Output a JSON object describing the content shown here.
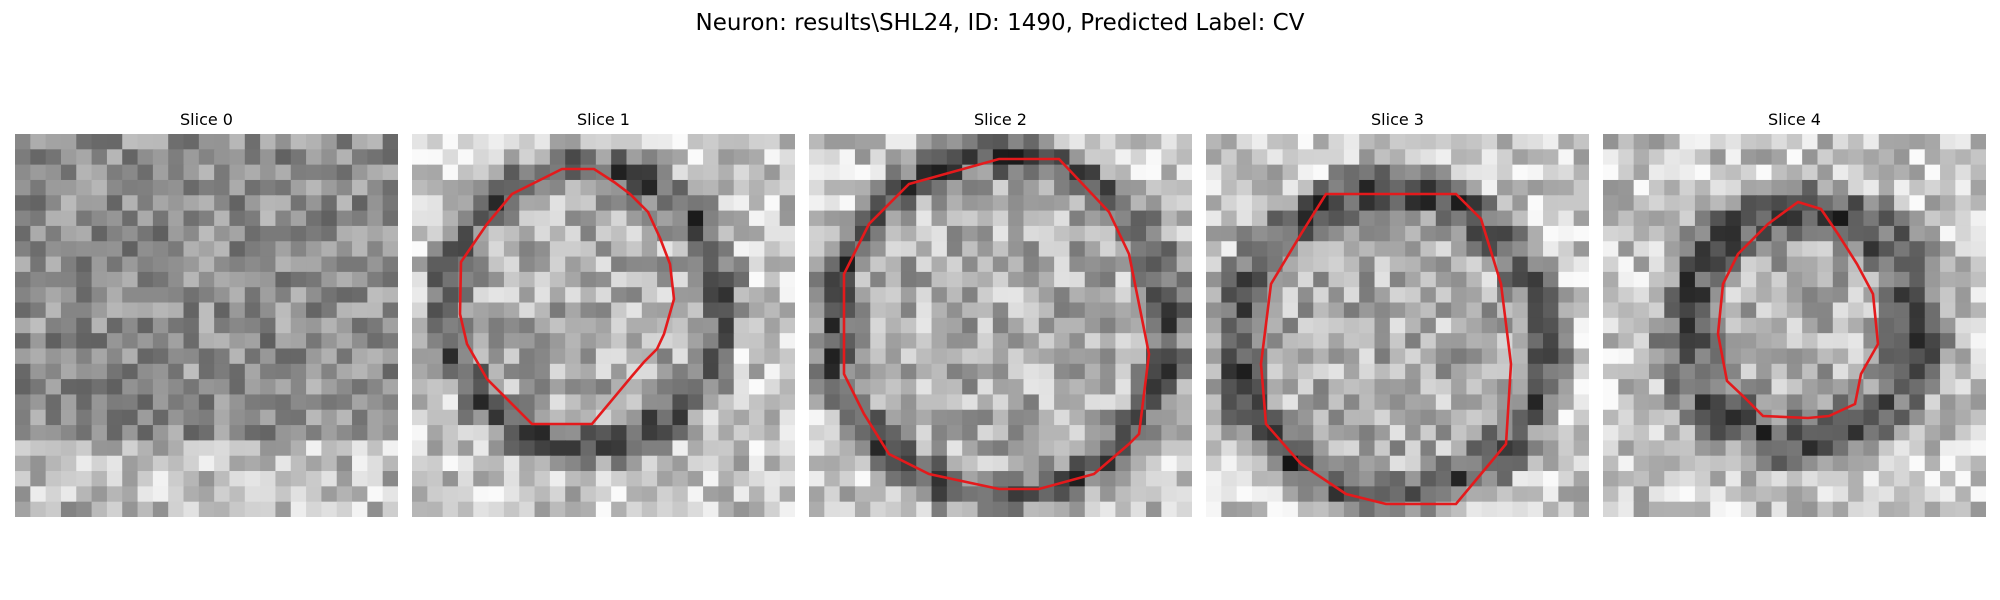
{
  "figure": {
    "title": "Neuron: results\\SHL24, ID: 1490, Predicted Label: CV"
  },
  "panels": [
    {
      "label": "Slice 0"
    },
    {
      "label": "Slice 1"
    },
    {
      "label": "Slice 2"
    },
    {
      "label": "Slice 3"
    },
    {
      "label": "Slice 4"
    }
  ],
  "colors": {
    "contour": "#e41a1c",
    "background": "#ffffff",
    "colormap": "gray"
  }
}
